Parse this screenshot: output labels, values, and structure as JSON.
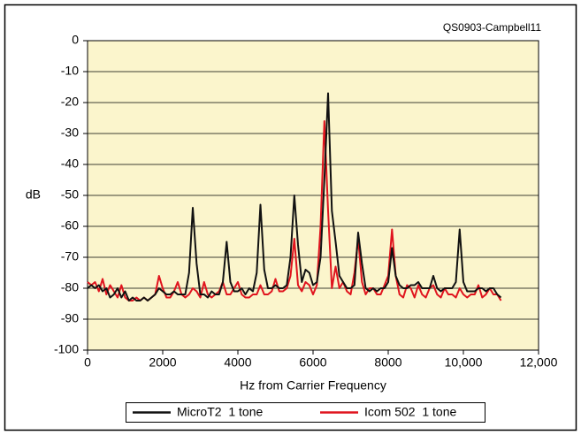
{
  "chart_data": {
    "type": "line",
    "annotation": "QS0903-Campbell11",
    "ylabel": "dB",
    "xlabel": "Hz from Carrier Frequency",
    "xlim": [
      0,
      12000
    ],
    "xticks": [
      0,
      2000,
      4000,
      6000,
      8000,
      {
        "value": 10000,
        "label": "10,000"
      },
      {
        "value": 12000,
        "label": "12,000"
      }
    ],
    "ylim": [
      -100,
      0
    ],
    "yticks": [
      0,
      -10,
      -20,
      -30,
      -40,
      -50,
      -60,
      -70,
      -80,
      -90,
      -100
    ],
    "grid": true,
    "legend": "bottom",
    "x": [
      0,
      100,
      200,
      300,
      400,
      500,
      600,
      700,
      800,
      900,
      1000,
      1100,
      1200,
      1300,
      1400,
      1500,
      1600,
      1700,
      1800,
      1900,
      2000,
      2100,
      2200,
      2300,
      2400,
      2500,
      2600,
      2700,
      2800,
      2900,
      3000,
      3100,
      3200,
      3300,
      3400,
      3500,
      3600,
      3700,
      3800,
      3900,
      4000,
      4100,
      4200,
      4300,
      4400,
      4500,
      4600,
      4700,
      4800,
      4900,
      5000,
      5100,
      5200,
      5300,
      5400,
      5500,
      5600,
      5700,
      5800,
      5900,
      6000,
      6100,
      6200,
      6300,
      6400,
      6500,
      6600,
      6700,
      6800,
      6900,
      7000,
      7100,
      7200,
      7300,
      7400,
      7500,
      7600,
      7700,
      7800,
      7900,
      8000,
      8100,
      8200,
      8300,
      8400,
      8500,
      8600,
      8700,
      8800,
      8900,
      9000,
      9100,
      9200,
      9300,
      9400,
      9500,
      9600,
      9700,
      9800,
      9900,
      10000,
      10100,
      10200,
      10300,
      10400,
      10500,
      10600,
      10700,
      10800,
      10900,
      11000
    ],
    "series": [
      {
        "name": "MicroT2  1 tone",
        "color": "#111111",
        "values": [
          -80,
          -79,
          -80,
          -79,
          -81,
          -80,
          -83,
          -82,
          -80,
          -83,
          -81,
          -84,
          -83,
          -84,
          -84,
          -83,
          -84,
          -83,
          -82,
          -80,
          -81,
          -82,
          -82,
          -81,
          -82,
          -82,
          -82,
          -75,
          -54,
          -72,
          -82,
          -82,
          -83,
          -81,
          -82,
          -82,
          -78,
          -65,
          -78,
          -81,
          -81,
          -80,
          -82,
          -80,
          -81,
          -75,
          -53,
          -74,
          -80,
          -80,
          -79,
          -80,
          -80,
          -79,
          -70,
          -50,
          -66,
          -78,
          -74,
          -75,
          -79,
          -78,
          -70,
          -45,
          -17,
          -55,
          -65,
          -76,
          -78,
          -80,
          -80,
          -79,
          -62,
          -72,
          -80,
          -81,
          -80,
          -81,
          -80,
          -80,
          -78,
          -67,
          -76,
          -79,
          -80,
          -80,
          -79,
          -79,
          -78,
          -80,
          -80,
          -80,
          -76,
          -80,
          -81,
          -80,
          -80,
          -80,
          -78,
          -61,
          -78,
          -81,
          -81,
          -81,
          -80,
          -80,
          -81,
          -80,
          -80,
          -82,
          -83
        ]
      },
      {
        "name": "Icom 502  1 tone",
        "color": "#e0141e",
        "values": [
          -78,
          -79,
          -78,
          -81,
          -77,
          -82,
          -79,
          -81,
          -83,
          -79,
          -83,
          -84,
          -84,
          -83,
          -84,
          -83,
          -84,
          -83,
          -82,
          -76,
          -80,
          -83,
          -83,
          -81,
          -78,
          -82,
          -83,
          -82,
          -80,
          -81,
          -83,
          -78,
          -82,
          -83,
          -82,
          -81,
          -78,
          -82,
          -82,
          -80,
          -78,
          -82,
          -83,
          -83,
          -82,
          -82,
          -79,
          -82,
          -82,
          -81,
          -77,
          -81,
          -81,
          -80,
          -76,
          -64,
          -79,
          -81,
          -78,
          -79,
          -82,
          -79,
          -60,
          -26,
          -55,
          -80,
          -73,
          -80,
          -78,
          -81,
          -82,
          -75,
          -64,
          -78,
          -82,
          -80,
          -80,
          -82,
          -82,
          -79,
          -76,
          -61,
          -76,
          -82,
          -83,
          -79,
          -80,
          -83,
          -79,
          -82,
          -83,
          -80,
          -79,
          -82,
          -83,
          -80,
          -82,
          -82,
          -83,
          -80,
          -82,
          -83,
          -82,
          -82,
          -79,
          -83,
          -82,
          -80,
          -82,
          -82,
          -84
        ]
      }
    ]
  }
}
